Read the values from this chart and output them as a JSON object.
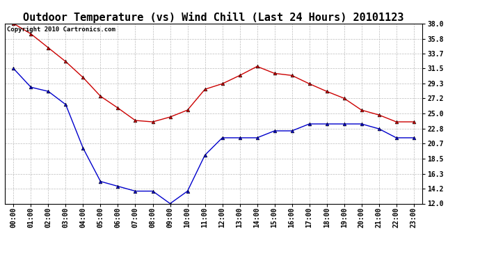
{
  "title": "Outdoor Temperature (vs) Wind Chill (Last 24 Hours) 20101123",
  "copyright": "Copyright 2010 Cartronics.com",
  "x_labels": [
    "00:00",
    "01:00",
    "02:00",
    "03:00",
    "04:00",
    "05:00",
    "06:00",
    "07:00",
    "08:00",
    "09:00",
    "10:00",
    "11:00",
    "12:00",
    "13:00",
    "14:00",
    "15:00",
    "16:00",
    "17:00",
    "18:00",
    "19:00",
    "20:00",
    "21:00",
    "22:00",
    "23:00"
  ],
  "temp_red": [
    38.0,
    36.5,
    34.5,
    32.5,
    30.2,
    27.5,
    25.8,
    24.0,
    23.8,
    24.5,
    25.5,
    28.5,
    29.3,
    30.5,
    31.8,
    30.8,
    30.5,
    29.3,
    28.2,
    27.2,
    25.5,
    24.8,
    23.8,
    23.8
  ],
  "wind_chill_blue": [
    31.5,
    28.8,
    28.2,
    26.3,
    20.0,
    15.2,
    14.5,
    13.8,
    13.8,
    12.0,
    13.8,
    19.0,
    21.5,
    21.5,
    21.5,
    22.5,
    22.5,
    23.5,
    23.5,
    23.5,
    23.5,
    22.8,
    21.5,
    21.5
  ],
  "red_color": "#cc0000",
  "blue_color": "#0000cc",
  "bg_color": "#ffffff",
  "plot_bg_color": "#ffffff",
  "grid_color": "#bbbbbb",
  "ylim_min": 12.0,
  "ylim_max": 38.0,
  "yticks": [
    12.0,
    14.2,
    16.3,
    18.5,
    20.7,
    22.8,
    25.0,
    27.2,
    29.3,
    31.5,
    33.7,
    35.8,
    38.0
  ],
  "title_fontsize": 11,
  "tick_fontsize": 7,
  "copyright_fontsize": 6.5
}
